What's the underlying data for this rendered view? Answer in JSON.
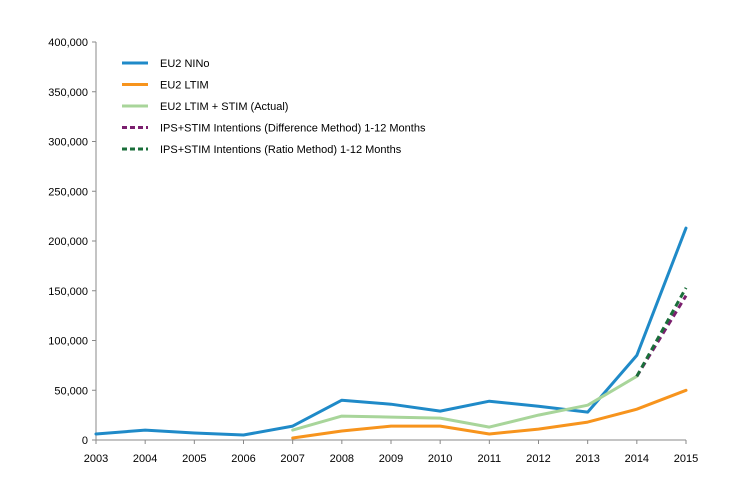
{
  "chart_data": {
    "type": "line",
    "title": "",
    "xlabel": "",
    "ylabel": "",
    "x": [
      "2003",
      "2004",
      "2005",
      "2006",
      "2007",
      "2008",
      "2009",
      "2010",
      "2011",
      "2012",
      "2013",
      "2014",
      "2015"
    ],
    "ylim": [
      0,
      400000
    ],
    "yticks": [
      "0",
      "50,000",
      "100,000",
      "150,000",
      "200,000",
      "250,000",
      "300,000",
      "350,000",
      "400,000"
    ],
    "grid": false,
    "legend_position": "top-left",
    "series": [
      {
        "name": "EU2 NINo",
        "color": "#1f8ac8",
        "dashed": false,
        "values": [
          6000,
          10000,
          7000,
          5000,
          14000,
          40000,
          36000,
          29000,
          39000,
          34000,
          28000,
          85000,
          213000
        ]
      },
      {
        "name": "EU2 LTIM",
        "color": "#f7941d",
        "dashed": false,
        "values": [
          null,
          null,
          null,
          null,
          2000,
          9000,
          14000,
          14000,
          6000,
          11000,
          18000,
          31000,
          50000
        ]
      },
      {
        "name": "EU2 LTIM + STIM (Actual)",
        "color": "#a8d59a",
        "dashed": false,
        "values": [
          null,
          null,
          null,
          null,
          10000,
          24000,
          23000,
          22000,
          13000,
          25000,
          35000,
          64000,
          null
        ]
      },
      {
        "name": "IPS+STIM Intentions (Difference Method) 1-12 Months",
        "color": "#7b1f6e",
        "dashed": true,
        "values": [
          null,
          null,
          null,
          null,
          null,
          null,
          null,
          null,
          null,
          null,
          null,
          64000,
          145000
        ]
      },
      {
        "name": "IPS+STIM Intentions (Ratio Method) 1-12 Months",
        "color": "#1a6e3a",
        "dashed": true,
        "values": [
          null,
          null,
          null,
          null,
          null,
          null,
          null,
          null,
          null,
          null,
          null,
          64000,
          153000
        ]
      }
    ]
  }
}
